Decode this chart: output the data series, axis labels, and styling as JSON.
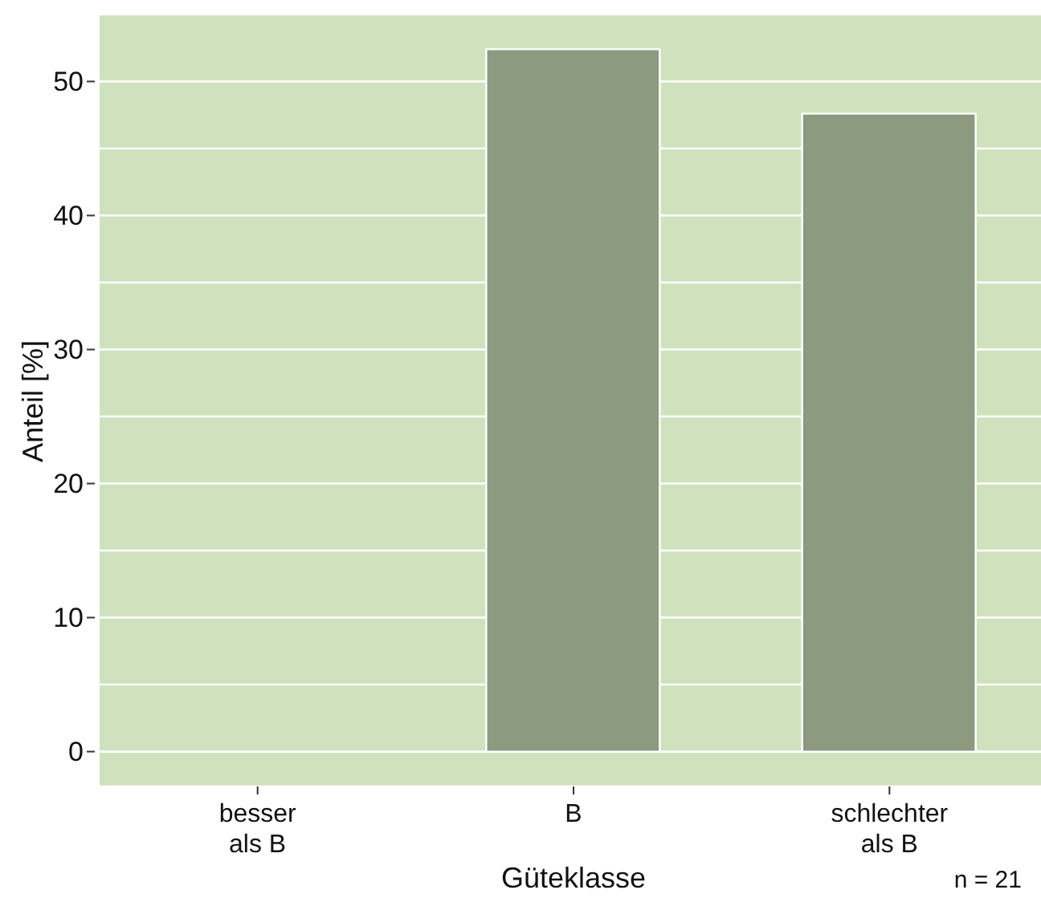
{
  "chart_data": {
    "type": "bar",
    "xlabel": "Güteklasse",
    "ylabel": "Anteil [%]",
    "categories": [
      "besser als B",
      "B",
      "schlechter als B"
    ],
    "values": [
      0,
      52.4,
      47.6
    ],
    "color": "#8c9a80",
    "ylim": [
      -2.6,
      55
    ],
    "yticks": [
      0,
      {
        "value": 5,
        "label": null
      },
      10,
      {
        "value": 15,
        "label": null
      },
      20,
      {
        "value": 25,
        "label": null
      },
      30,
      {
        "value": 35,
        "label": null
      },
      40,
      {
        "value": 45,
        "label": null
      },
      50
    ],
    "grid": "y",
    "legend": false,
    "annotations": [
      "n = 21"
    ]
  }
}
